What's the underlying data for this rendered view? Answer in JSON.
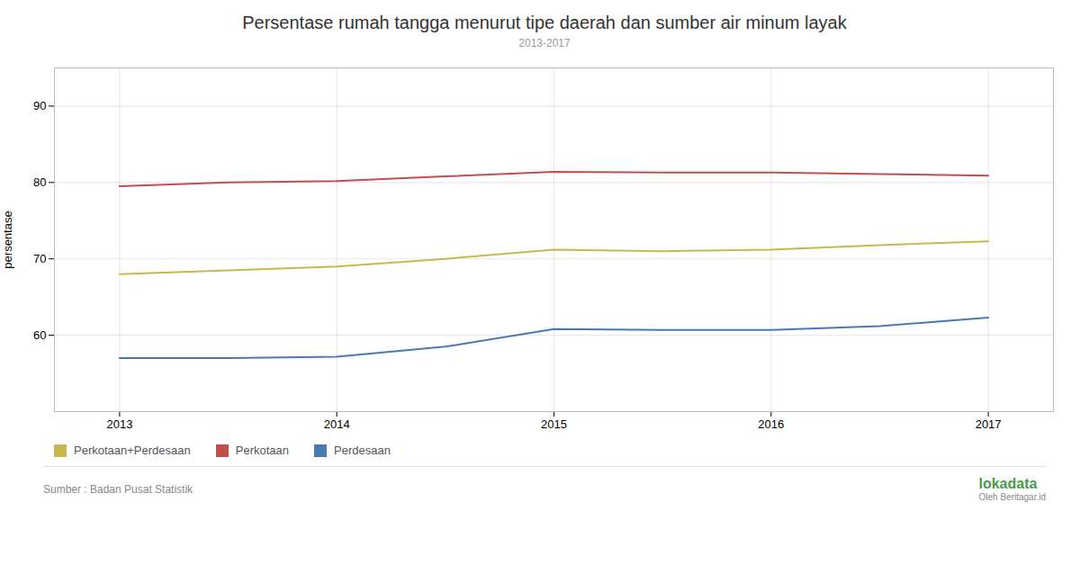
{
  "chart_data": {
    "type": "line",
    "title": "Persentase rumah tangga menurut tipe daerah dan sumber air minum layak",
    "subtitle": "2013-2017",
    "ylabel": "persentase",
    "x": [
      2013,
      2013.5,
      2014,
      2014.5,
      2015,
      2015.5,
      2016,
      2016.5,
      2017
    ],
    "series": [
      {
        "name": "Perkotaan+Perdesaan",
        "color": "#c8b850",
        "values": [
          68.0,
          68.5,
          69.0,
          70.0,
          71.2,
          71.0,
          71.2,
          71.8,
          72.3
        ]
      },
      {
        "name": "Perkotaan",
        "color": "#c0504d",
        "values": [
          79.5,
          80.0,
          80.2,
          80.8,
          81.4,
          81.3,
          81.3,
          81.1,
          80.9
        ]
      },
      {
        "name": "Perdesaan",
        "color": "#4a7ab5",
        "values": [
          57.0,
          57.0,
          57.2,
          58.5,
          60.8,
          60.7,
          60.7,
          61.2,
          62.3
        ]
      }
    ],
    "xlim": [
      2012.7,
      2017.3
    ],
    "xticks": [
      2013,
      2014,
      2015,
      2016,
      2017
    ],
    "ylim": [
      50,
      95
    ],
    "yticks": [
      60,
      70,
      80,
      90
    ],
    "grid": true,
    "legend": "bottom",
    "source": "Sumber : Badan Pusat Statistik",
    "annotations": [
      "lokadata",
      "Oleh Beritagar.id"
    ]
  }
}
